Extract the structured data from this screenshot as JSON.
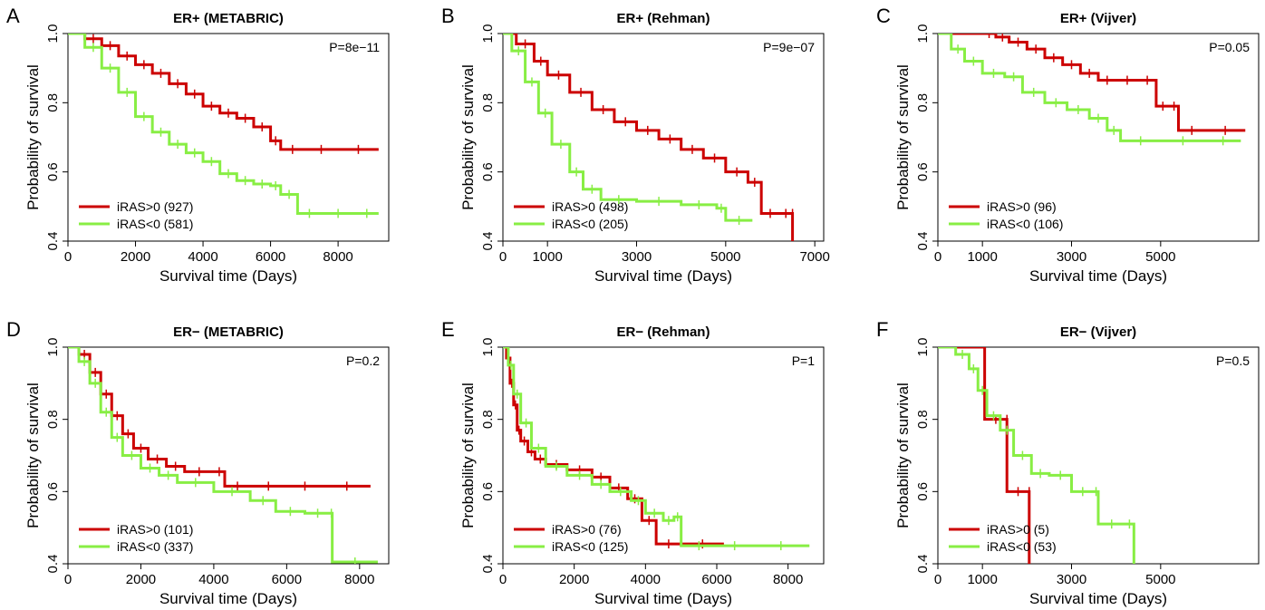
{
  "chart_data": [
    {
      "type": "line",
      "panel": "A",
      "title": "ER+ (METABRIC)",
      "xlabel": "Survival time (Days)",
      "ylabel": "Probability of survival",
      "xlim": [
        0,
        9500
      ],
      "ylim": [
        0.4,
        1.0
      ],
      "xticks": [
        0,
        2000,
        4000,
        6000,
        8000
      ],
      "yticks": [
        0.4,
        0.6,
        0.8,
        1.0
      ],
      "p_value": "P=8e−11",
      "legend_position": "bottom-left",
      "series": [
        {
          "name": "iRAS>0 (927)",
          "color": "#cc0000",
          "x": [
            0,
            500,
            1000,
            1500,
            2000,
            2500,
            3000,
            3500,
            4000,
            4500,
            5000,
            5500,
            6000,
            6300,
            7000,
            8000,
            9200
          ],
          "y": [
            1.0,
            0.985,
            0.965,
            0.935,
            0.91,
            0.885,
            0.855,
            0.825,
            0.79,
            0.77,
            0.755,
            0.73,
            0.69,
            0.665,
            0.665,
            0.665,
            0.665
          ]
        },
        {
          "name": "iRAS<0 (581)",
          "color": "#88ee44",
          "x": [
            0,
            500,
            1000,
            1500,
            2000,
            2500,
            3000,
            3500,
            4000,
            4500,
            5000,
            5500,
            6000,
            6300,
            6800,
            7500,
            8500,
            9200
          ],
          "y": [
            1.0,
            0.96,
            0.9,
            0.83,
            0.76,
            0.715,
            0.68,
            0.655,
            0.63,
            0.595,
            0.575,
            0.565,
            0.56,
            0.535,
            0.48,
            0.48,
            0.48,
            0.48
          ]
        }
      ]
    },
    {
      "type": "line",
      "panel": "B",
      "title": "ER+ (Rehman)",
      "xlabel": "Survival time (Days)",
      "ylabel": "Probability of survival",
      "xlim": [
        0,
        7200
      ],
      "ylim": [
        0.4,
        1.0
      ],
      "xticks": [
        0,
        1000,
        3000,
        5000,
        7000
      ],
      "yticks": [
        0.4,
        0.6,
        0.8,
        1.0
      ],
      "p_value": "P=9e−07",
      "legend_position": "bottom-left",
      "series": [
        {
          "name": "iRAS>0 (498)",
          "color": "#cc0000",
          "x": [
            0,
            300,
            700,
            1000,
            1500,
            2000,
            2500,
            3000,
            3500,
            4000,
            4500,
            5000,
            5500,
            5800,
            6200,
            6500,
            6500
          ],
          "y": [
            1.0,
            0.97,
            0.92,
            0.88,
            0.83,
            0.78,
            0.745,
            0.72,
            0.695,
            0.665,
            0.64,
            0.6,
            0.57,
            0.48,
            0.48,
            0.48,
            0.35
          ]
        },
        {
          "name": "iRAS<0 (205)",
          "color": "#88ee44",
          "x": [
            0,
            200,
            500,
            800,
            1100,
            1500,
            1800,
            2200,
            3000,
            4000,
            4800,
            5000,
            5600
          ],
          "y": [
            1.0,
            0.95,
            0.86,
            0.77,
            0.68,
            0.6,
            0.55,
            0.52,
            0.515,
            0.505,
            0.495,
            0.46,
            0.46
          ]
        }
      ]
    },
    {
      "type": "line",
      "panel": "C",
      "title": "ER+ (Vijver)",
      "xlabel": "Survival time (Days)",
      "ylabel": "Probability of survival",
      "xlim": [
        0,
        7200
      ],
      "ylim": [
        0.4,
        1.0
      ],
      "xticks": [
        0,
        1000,
        3000,
        5000
      ],
      "yticks": [
        0.4,
        0.6,
        0.8,
        1.0
      ],
      "p_value": "P=0.05",
      "legend_position": "bottom-left",
      "series": [
        {
          "name": "iRAS>0 (96)",
          "color": "#cc0000",
          "x": [
            0,
            1000,
            1300,
            1600,
            2000,
            2400,
            2800,
            3200,
            3600,
            4000,
            4500,
            4900,
            5200,
            5400,
            6000,
            6900
          ],
          "y": [
            1.0,
            1.0,
            0.99,
            0.975,
            0.955,
            0.93,
            0.91,
            0.885,
            0.865,
            0.865,
            0.865,
            0.79,
            0.79,
            0.72,
            0.72,
            0.72
          ]
        },
        {
          "name": "iRAS<0 (106)",
          "color": "#88ee44",
          "x": [
            0,
            300,
            600,
            1000,
            1500,
            1900,
            2400,
            2900,
            3400,
            3800,
            4100,
            5000,
            6000,
            6800
          ],
          "y": [
            1.0,
            0.955,
            0.92,
            0.885,
            0.875,
            0.83,
            0.8,
            0.78,
            0.755,
            0.72,
            0.69,
            0.69,
            0.69,
            0.69
          ]
        }
      ]
    },
    {
      "type": "line",
      "panel": "D",
      "title": "ER− (METABRIC)",
      "xlabel": "Survival time (Days)",
      "ylabel": "Probability of survival",
      "xlim": [
        0,
        8800
      ],
      "ylim": [
        0.4,
        1.0
      ],
      "xticks": [
        0,
        2000,
        4000,
        6000,
        8000
      ],
      "yticks": [
        0.4,
        0.6,
        0.8,
        1.0
      ],
      "p_value": "P=0.2",
      "legend_position": "bottom-left",
      "series": [
        {
          "name": "iRAS>0 (101)",
          "color": "#cc0000",
          "x": [
            0,
            300,
            600,
            900,
            1200,
            1500,
            1800,
            2200,
            2700,
            3200,
            4000,
            4300,
            5000,
            6000,
            7000,
            8300
          ],
          "y": [
            1.0,
            0.98,
            0.93,
            0.87,
            0.81,
            0.76,
            0.72,
            0.69,
            0.67,
            0.655,
            0.655,
            0.615,
            0.615,
            0.615,
            0.615,
            0.615
          ]
        },
        {
          "name": "iRAS<0 (337)",
          "color": "#88ee44",
          "x": [
            0,
            300,
            600,
            900,
            1200,
            1500,
            2000,
            2500,
            3000,
            4000,
            5000,
            5700,
            6500,
            7200,
            7250,
            8500
          ],
          "y": [
            1.0,
            0.96,
            0.9,
            0.82,
            0.75,
            0.7,
            0.665,
            0.645,
            0.625,
            0.6,
            0.575,
            0.545,
            0.54,
            0.54,
            0.405,
            0.405
          ]
        }
      ]
    },
    {
      "type": "line",
      "panel": "E",
      "title": "ER− (Rehman)",
      "xlabel": "Survival time (Days)",
      "ylabel": "Probability of survival",
      "xlim": [
        0,
        9000
      ],
      "ylim": [
        0.4,
        1.0
      ],
      "xticks": [
        0,
        2000,
        4000,
        6000,
        8000
      ],
      "yticks": [
        0.4,
        0.6,
        0.8,
        1.0
      ],
      "p_value": "P=1",
      "legend_position": "bottom-left",
      "series": [
        {
          "name": "iRAS>0 (76)",
          "color": "#cc0000",
          "x": [
            0,
            100,
            200,
            300,
            400,
            500,
            700,
            900,
            1200,
            1800,
            2500,
            3000,
            3500,
            3900,
            4300,
            5000,
            6200
          ],
          "y": [
            1.0,
            0.97,
            0.9,
            0.84,
            0.77,
            0.74,
            0.71,
            0.69,
            0.675,
            0.66,
            0.64,
            0.61,
            0.58,
            0.52,
            0.455,
            0.455,
            0.455
          ]
        },
        {
          "name": "iRAS<0 (125)",
          "color": "#88ee44",
          "x": [
            0,
            150,
            300,
            500,
            800,
            1200,
            1800,
            2500,
            3000,
            3600,
            4000,
            4500,
            4800,
            5000,
            6000,
            7000,
            8600
          ],
          "y": [
            1.0,
            0.95,
            0.87,
            0.79,
            0.72,
            0.67,
            0.645,
            0.62,
            0.6,
            0.575,
            0.54,
            0.52,
            0.53,
            0.45,
            0.45,
            0.45,
            0.45
          ]
        }
      ]
    },
    {
      "type": "line",
      "panel": "F",
      "title": "ER− (Vijver)",
      "xlabel": "Survival time (Days)",
      "ylabel": "Probability of survival",
      "xlim": [
        0,
        7200
      ],
      "ylim": [
        0.4,
        1.0
      ],
      "xticks": [
        0,
        1000,
        3000,
        5000
      ],
      "yticks": [
        0.4,
        0.6,
        0.8,
        1.0
      ],
      "p_value": "P=0.5",
      "legend_position": "bottom-left",
      "series": [
        {
          "name": "iRAS>0 (5)",
          "color": "#cc0000",
          "x": [
            0,
            1050,
            1050,
            1550,
            1550,
            2050,
            2050
          ],
          "y": [
            1.0,
            1.0,
            0.8,
            0.8,
            0.6,
            0.6,
            0.35
          ]
        },
        {
          "name": "iRAS<0 (53)",
          "color": "#88ee44",
          "x": [
            0,
            400,
            700,
            900,
            1100,
            1400,
            1700,
            2100,
            2500,
            3000,
            3500,
            3600,
            4200,
            4400,
            4400
          ],
          "y": [
            1.0,
            0.98,
            0.94,
            0.88,
            0.81,
            0.77,
            0.7,
            0.65,
            0.645,
            0.6,
            0.6,
            0.51,
            0.51,
            0.44,
            0.38
          ]
        }
      ]
    }
  ]
}
